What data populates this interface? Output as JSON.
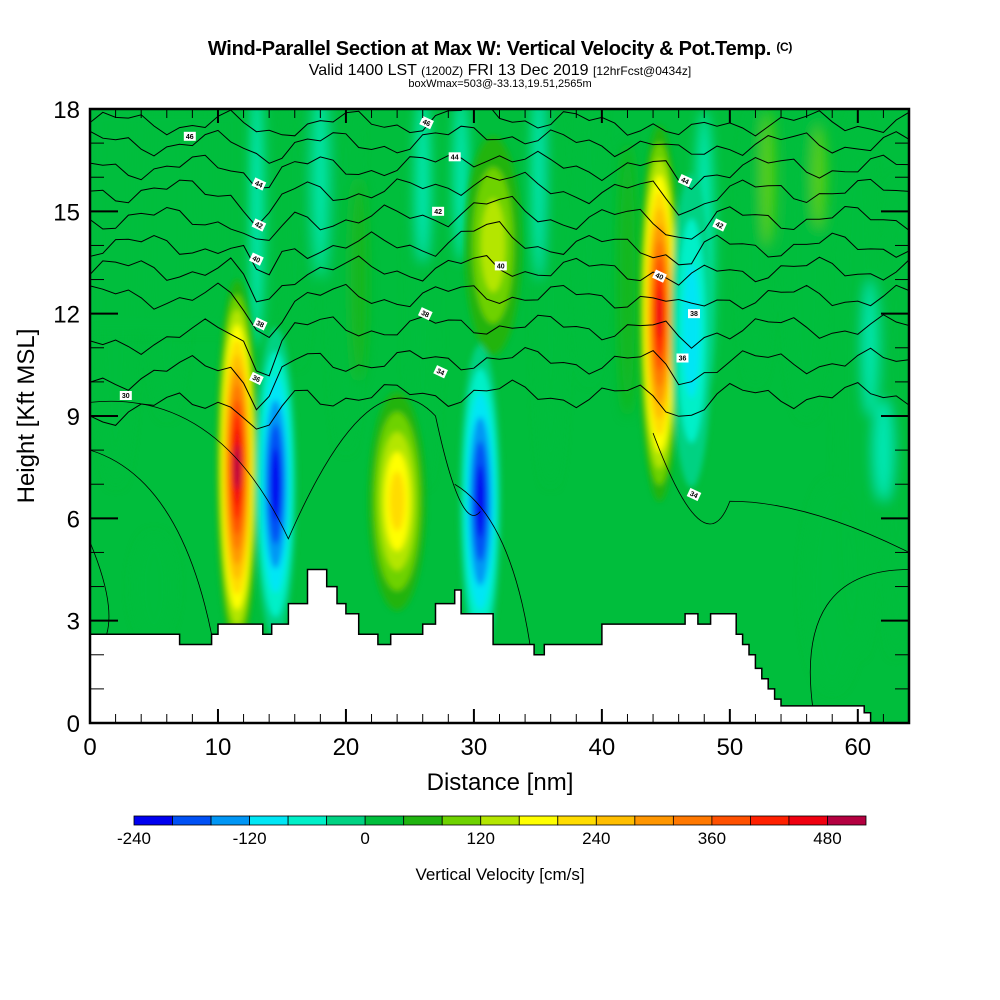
{
  "title": {
    "main": "Wind-Parallel Section at Max W: Vertical Velocity & Pot.Temp.",
    "copyright": "(C)",
    "valid_prefix": "Valid 1400 LST",
    "valid_utc": "(1200Z)",
    "valid_date": "FRI 13 Dec 2019",
    "forecast": "[12hrFcst@0434z]",
    "boxwmax": "boxWmax=503@-33.13,19.51,2565m"
  },
  "chart_data": {
    "type": "heatmap",
    "title": "Wind-Parallel Section at Max W: Vertical Velocity & Pot.Temp.",
    "xlabel": "Distance [nm]",
    "ylabel": "Height [Kft MSL]",
    "xlim": [
      0,
      64
    ],
    "ylim": [
      0,
      18
    ],
    "x_ticks": [
      0,
      10,
      20,
      30,
      40,
      50,
      60
    ],
    "x_tick_labels": [
      "0",
      "10",
      "20",
      "30",
      "40",
      "50",
      "60"
    ],
    "y_ticks": [
      0,
      3,
      6,
      9,
      12,
      15,
      18
    ],
    "y_tick_labels": [
      "0",
      "3",
      "6",
      "9",
      "12",
      "15",
      "18"
    ],
    "colorbar": {
      "title": "Vertical Velocity [cm/s]",
      "levels": [
        -240,
        -200,
        -160,
        -120,
        -80,
        -40,
        0,
        40,
        80,
        120,
        160,
        200,
        240,
        280,
        320,
        360,
        400,
        440,
        480,
        520
      ],
      "tick_values": [
        -240,
        -120,
        0,
        120,
        240,
        360,
        480
      ],
      "tick_labels": [
        "-240",
        "-120",
        "0",
        "120",
        "240",
        "360",
        "480"
      ],
      "colors": [
        "#0000f0",
        "#0050f5",
        "#0096f5",
        "#00e6f5",
        "#00f0c8",
        "#00d282",
        "#00be3c",
        "#20b410",
        "#6ed200",
        "#b4e600",
        "#ffff00",
        "#ffdc00",
        "#ffbe00",
        "#ff9600",
        "#ff7800",
        "#ff5000",
        "#ff2000",
        "#f00010",
        "#b40040"
      ]
    },
    "background_field_cm_s": 0,
    "features": [
      {
        "kind": "updraft",
        "x_nm": 11.5,
        "z_kft": 7.5,
        "peak_cm_s": 480
      },
      {
        "kind": "downdraft",
        "x_nm": 14.5,
        "z_kft": 7.0,
        "peak_cm_s": -240
      },
      {
        "kind": "updraft",
        "x_nm": 24.0,
        "z_kft": 6.5,
        "peak_cm_s": 200
      },
      {
        "kind": "downdraft",
        "x_nm": 30.5,
        "z_kft": 6.5,
        "peak_cm_s": -240
      },
      {
        "kind": "updraft",
        "x_nm": 44.5,
        "z_kft": 12.0,
        "peak_cm_s": 440
      },
      {
        "kind": "downdraft",
        "x_nm": 47.0,
        "z_kft": 11.5,
        "peak_cm_s": -120
      },
      {
        "kind": "updraft",
        "x_nm": 31.5,
        "z_kft": 14.0,
        "peak_cm_s": 120
      }
    ],
    "terrain_kft": {
      "x_nm": [
        0,
        7,
        9.5,
        10,
        13.5,
        14.2,
        15.5,
        17,
        18.5,
        19.3,
        20,
        21,
        22.5,
        23.5,
        26,
        27,
        28.5,
        29,
        31.5,
        34,
        34.7,
        35.5,
        40,
        46.5,
        47.5,
        48.5,
        50.5,
        51,
        51.5,
        52,
        52.5,
        53,
        53.5,
        54,
        60.5,
        61,
        64
      ],
      "z_kft": [
        2.6,
        2.3,
        2.6,
        2.9,
        2.6,
        2.9,
        3.5,
        4.5,
        4.0,
        3.5,
        3.2,
        2.6,
        2.3,
        2.6,
        2.9,
        3.5,
        3.9,
        3.2,
        2.3,
        2.3,
        2.0,
        2.3,
        2.9,
        3.2,
        2.9,
        3.2,
        2.6,
        2.3,
        2.0,
        1.6,
        1.3,
        1.0,
        0.7,
        0.5,
        0.3,
        0.0,
        0.3
      ]
    },
    "theta_contours": {
      "units": "C",
      "labels": [
        {
          "value": "46"
        },
        {
          "value": "46"
        },
        {
          "value": "44"
        },
        {
          "value": "44"
        },
        {
          "value": "44"
        },
        {
          "value": "42"
        },
        {
          "value": "42"
        },
        {
          "value": "42"
        },
        {
          "value": "40"
        },
        {
          "value": "40"
        },
        {
          "value": "40"
        },
        {
          "value": "38"
        },
        {
          "value": "38"
        },
        {
          "value": "38"
        },
        {
          "value": "36"
        },
        {
          "value": "36"
        },
        {
          "value": "34"
        },
        {
          "value": "34"
        },
        {
          "value": "30"
        }
      ]
    }
  }
}
